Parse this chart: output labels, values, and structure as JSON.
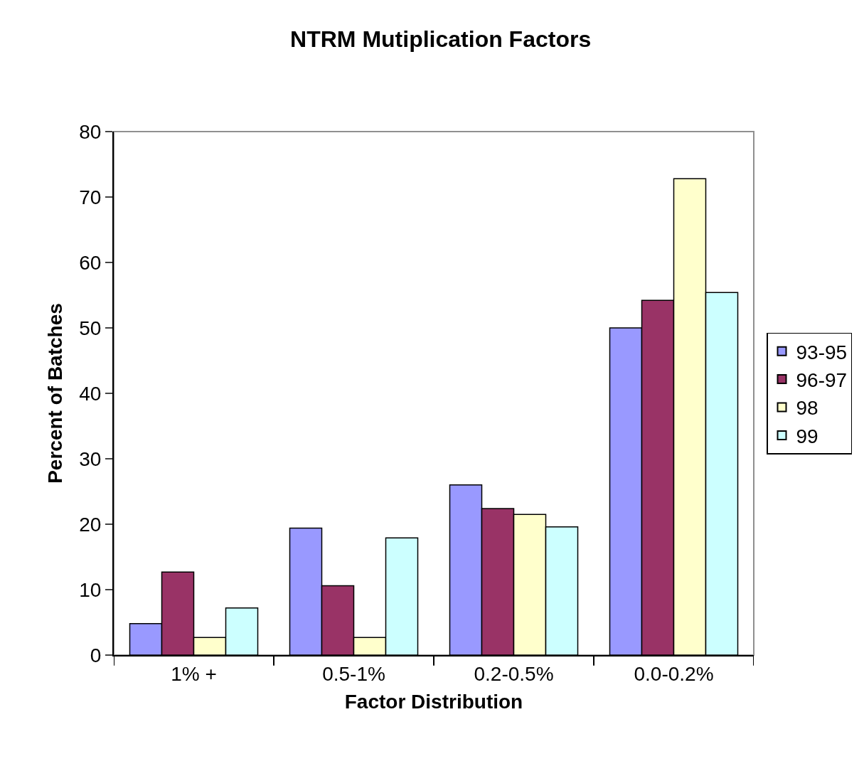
{
  "chart_data": {
    "type": "bar",
    "title": "NTRM Mutiplication Factors",
    "xlabel": "Factor Distribution",
    "ylabel": "Percent of Batches",
    "categories": [
      "1% +",
      "0.5-1%",
      "0.2-0.5%",
      "0.0-0.2%"
    ],
    "series": [
      {
        "name": "93-95",
        "color": "#9999ff",
        "values": [
          4.8,
          19.4,
          26.0,
          50.0
        ]
      },
      {
        "name": "96-97",
        "color": "#993366",
        "values": [
          12.7,
          10.6,
          22.4,
          54.2
        ]
      },
      {
        "name": "98",
        "color": "#ffffcc",
        "values": [
          2.7,
          2.7,
          21.5,
          72.8
        ]
      },
      {
        "name": "99",
        "color": "#ccffff",
        "values": [
          7.2,
          17.9,
          19.6,
          55.4
        ]
      }
    ],
    "ylim": [
      0,
      80
    ],
    "yticks": [
      0,
      10,
      20,
      30,
      40,
      50,
      60,
      70,
      80
    ],
    "grid": false,
    "legend": "right"
  }
}
